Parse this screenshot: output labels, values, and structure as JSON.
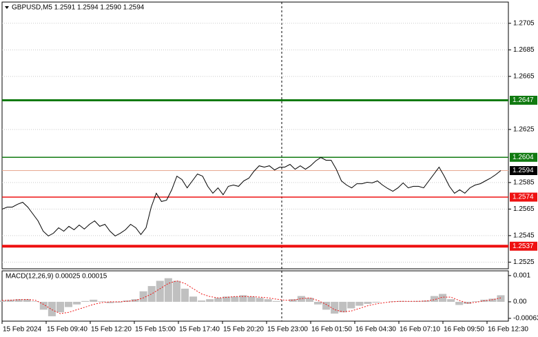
{
  "chart_data": [
    {
      "type": "line",
      "title": "GBPUSD,M5  1.2591 1.2594 1.2590 1.2594",
      "color": "#000000",
      "ylim": [
        1.252,
        1.2721
      ],
      "yticks": [
        1.2525,
        1.2545,
        1.2565,
        1.2585,
        1.2625,
        1.2665,
        1.2685,
        1.2705
      ],
      "grid": true,
      "values": [
        1.25649,
        1.25665,
        1.25665,
        1.25686,
        1.25701,
        1.25665,
        1.25613,
        1.25561,
        1.25483,
        1.25447,
        1.25468,
        1.25509,
        1.25483,
        1.2552,
        1.25494,
        1.2553,
        1.25499,
        1.25535,
        1.25561,
        1.2552,
        1.25535,
        1.25483,
        1.25447,
        1.25468,
        1.25494,
        1.25535,
        1.25509,
        1.25458,
        1.25509,
        1.25665,
        1.25769,
        1.25707,
        1.25717,
        1.25795,
        1.25898,
        1.25872,
        1.2581,
        1.25862,
        1.25914,
        1.25898,
        1.25821,
        1.25769,
        1.2581,
        1.25758,
        1.25821,
        1.25831,
        1.25821,
        1.25862,
        1.25883,
        1.25935,
        1.25976,
        1.25966,
        1.25976,
        1.25945,
        1.25966,
        1.25966,
        1.25987,
        1.2595,
        1.25976,
        1.2595,
        1.25976,
        1.26013,
        1.26039,
        1.26018,
        1.26018,
        1.2595,
        1.25862,
        1.25831,
        1.2581,
        1.25841,
        1.25841,
        1.25852,
        1.25847,
        1.25862,
        1.25831,
        1.25805,
        1.25784,
        1.2581,
        1.25847,
        1.2581,
        1.25821,
        1.25821,
        1.2581,
        1.25862,
        1.25914,
        1.25966,
        1.25898,
        1.25821,
        1.25769,
        1.25795,
        1.25769,
        1.2581,
        1.25831,
        1.25841,
        1.25862,
        1.25883,
        1.25909,
        1.2594
      ],
      "levels": [
        {
          "value": 1.2647,
          "color": "#107a10",
          "width": 3
        },
        {
          "value": 1.2604,
          "color": "#107a10",
          "width": 1.5
        },
        {
          "value": 1.2574,
          "color": "#ee1111",
          "width": 1.5
        },
        {
          "value": 1.2537,
          "color": "#ee1111",
          "width": 4
        }
      ],
      "current_price": 1.2594
    },
    {
      "type": "macd",
      "title": "MACD(12,26,9) 0.00025 0.00015",
      "ylim": [
        -0.000737,
        0.00118
      ],
      "yticks": [
        0.001,
        {
          "value": 0,
          "label": "0.00"
        },
        -0.00063
      ],
      "series": [
        {
          "type": "histogram",
          "color": "#c0c0c0",
          "values": [
            5e-05,
            8e-05,
            0.0001,
            0.0001,
            2e-05,
            -0.0003,
            -0.00055,
            -0.0004,
            -0.0002,
            -0.0001,
            3e-05,
            8e-05,
            2e-05,
            -5e-05,
            -3e-05,
            5e-05,
            0.0001,
            0.0004,
            0.0006,
            0.0008,
            0.0009,
            0.0008,
            0.0005,
            0.0002,
            5e-05,
            0.0001,
            0.00015,
            0.0002,
            0.0002,
            0.00025,
            0.0002,
            0.00015,
            0.0001,
            3e-05,
            0,
            0.0001,
            0.00022,
            0.00015,
            -0.0001,
            -0.0003,
            -0.00045,
            -0.0004,
            -0.00025,
            -0.00015,
            -8e-05,
            -3e-05,
            0,
            2e-05,
            3e-05,
            2e-05,
            3e-05,
            5e-05,
            0.00022,
            0.0003,
            0.0001,
            -0.00012,
            -8e-05,
            2e-05,
            8e-05,
            0.00012,
            0.00025
          ]
        },
        {
          "type": "signal",
          "color": "#ee1111",
          "values": [
            5e-05,
            6e-05,
            8e-05,
            9e-05,
            6e-05,
            -0.0001,
            -0.0003,
            -0.00045,
            -0.0004,
            -0.0003,
            -0.0002,
            -0.0001,
            -3e-05,
            0,
            0,
            2e-05,
            5e-05,
            0.00015,
            0.0003,
            0.0005,
            0.0007,
            0.0008,
            0.0007,
            0.0005,
            0.0003,
            0.0002,
            0.00015,
            0.00017,
            0.0002,
            0.0002,
            0.0002,
            0.00018,
            0.00015,
            0.0001,
            6e-05,
            6e-05,
            0.00012,
            0.00015,
            5e-05,
            -0.0001,
            -0.0003,
            -0.00038,
            -0.00035,
            -0.00025,
            -0.00015,
            -8e-05,
            -3e-05,
            0,
            2e-05,
            2e-05,
            2e-05,
            3e-05,
            8e-05,
            0.00018,
            0.00018,
            5e-05,
            -5e-05,
            -2e-05,
            4e-05,
            8e-05,
            0.00015
          ]
        }
      ],
      "x_labels": [
        "15 Feb 2024",
        "15 Feb 09:40",
        "15 Feb 12:20",
        "15 Feb 15:00",
        "15 Feb 17:40",
        "15 Feb 20:20",
        "15 Feb 23:00",
        "16 Feb 01:50",
        "16 Feb 04:30",
        "16 Feb 07:10",
        "16 Feb 09:50",
        "16 Feb 12:30"
      ]
    }
  ]
}
